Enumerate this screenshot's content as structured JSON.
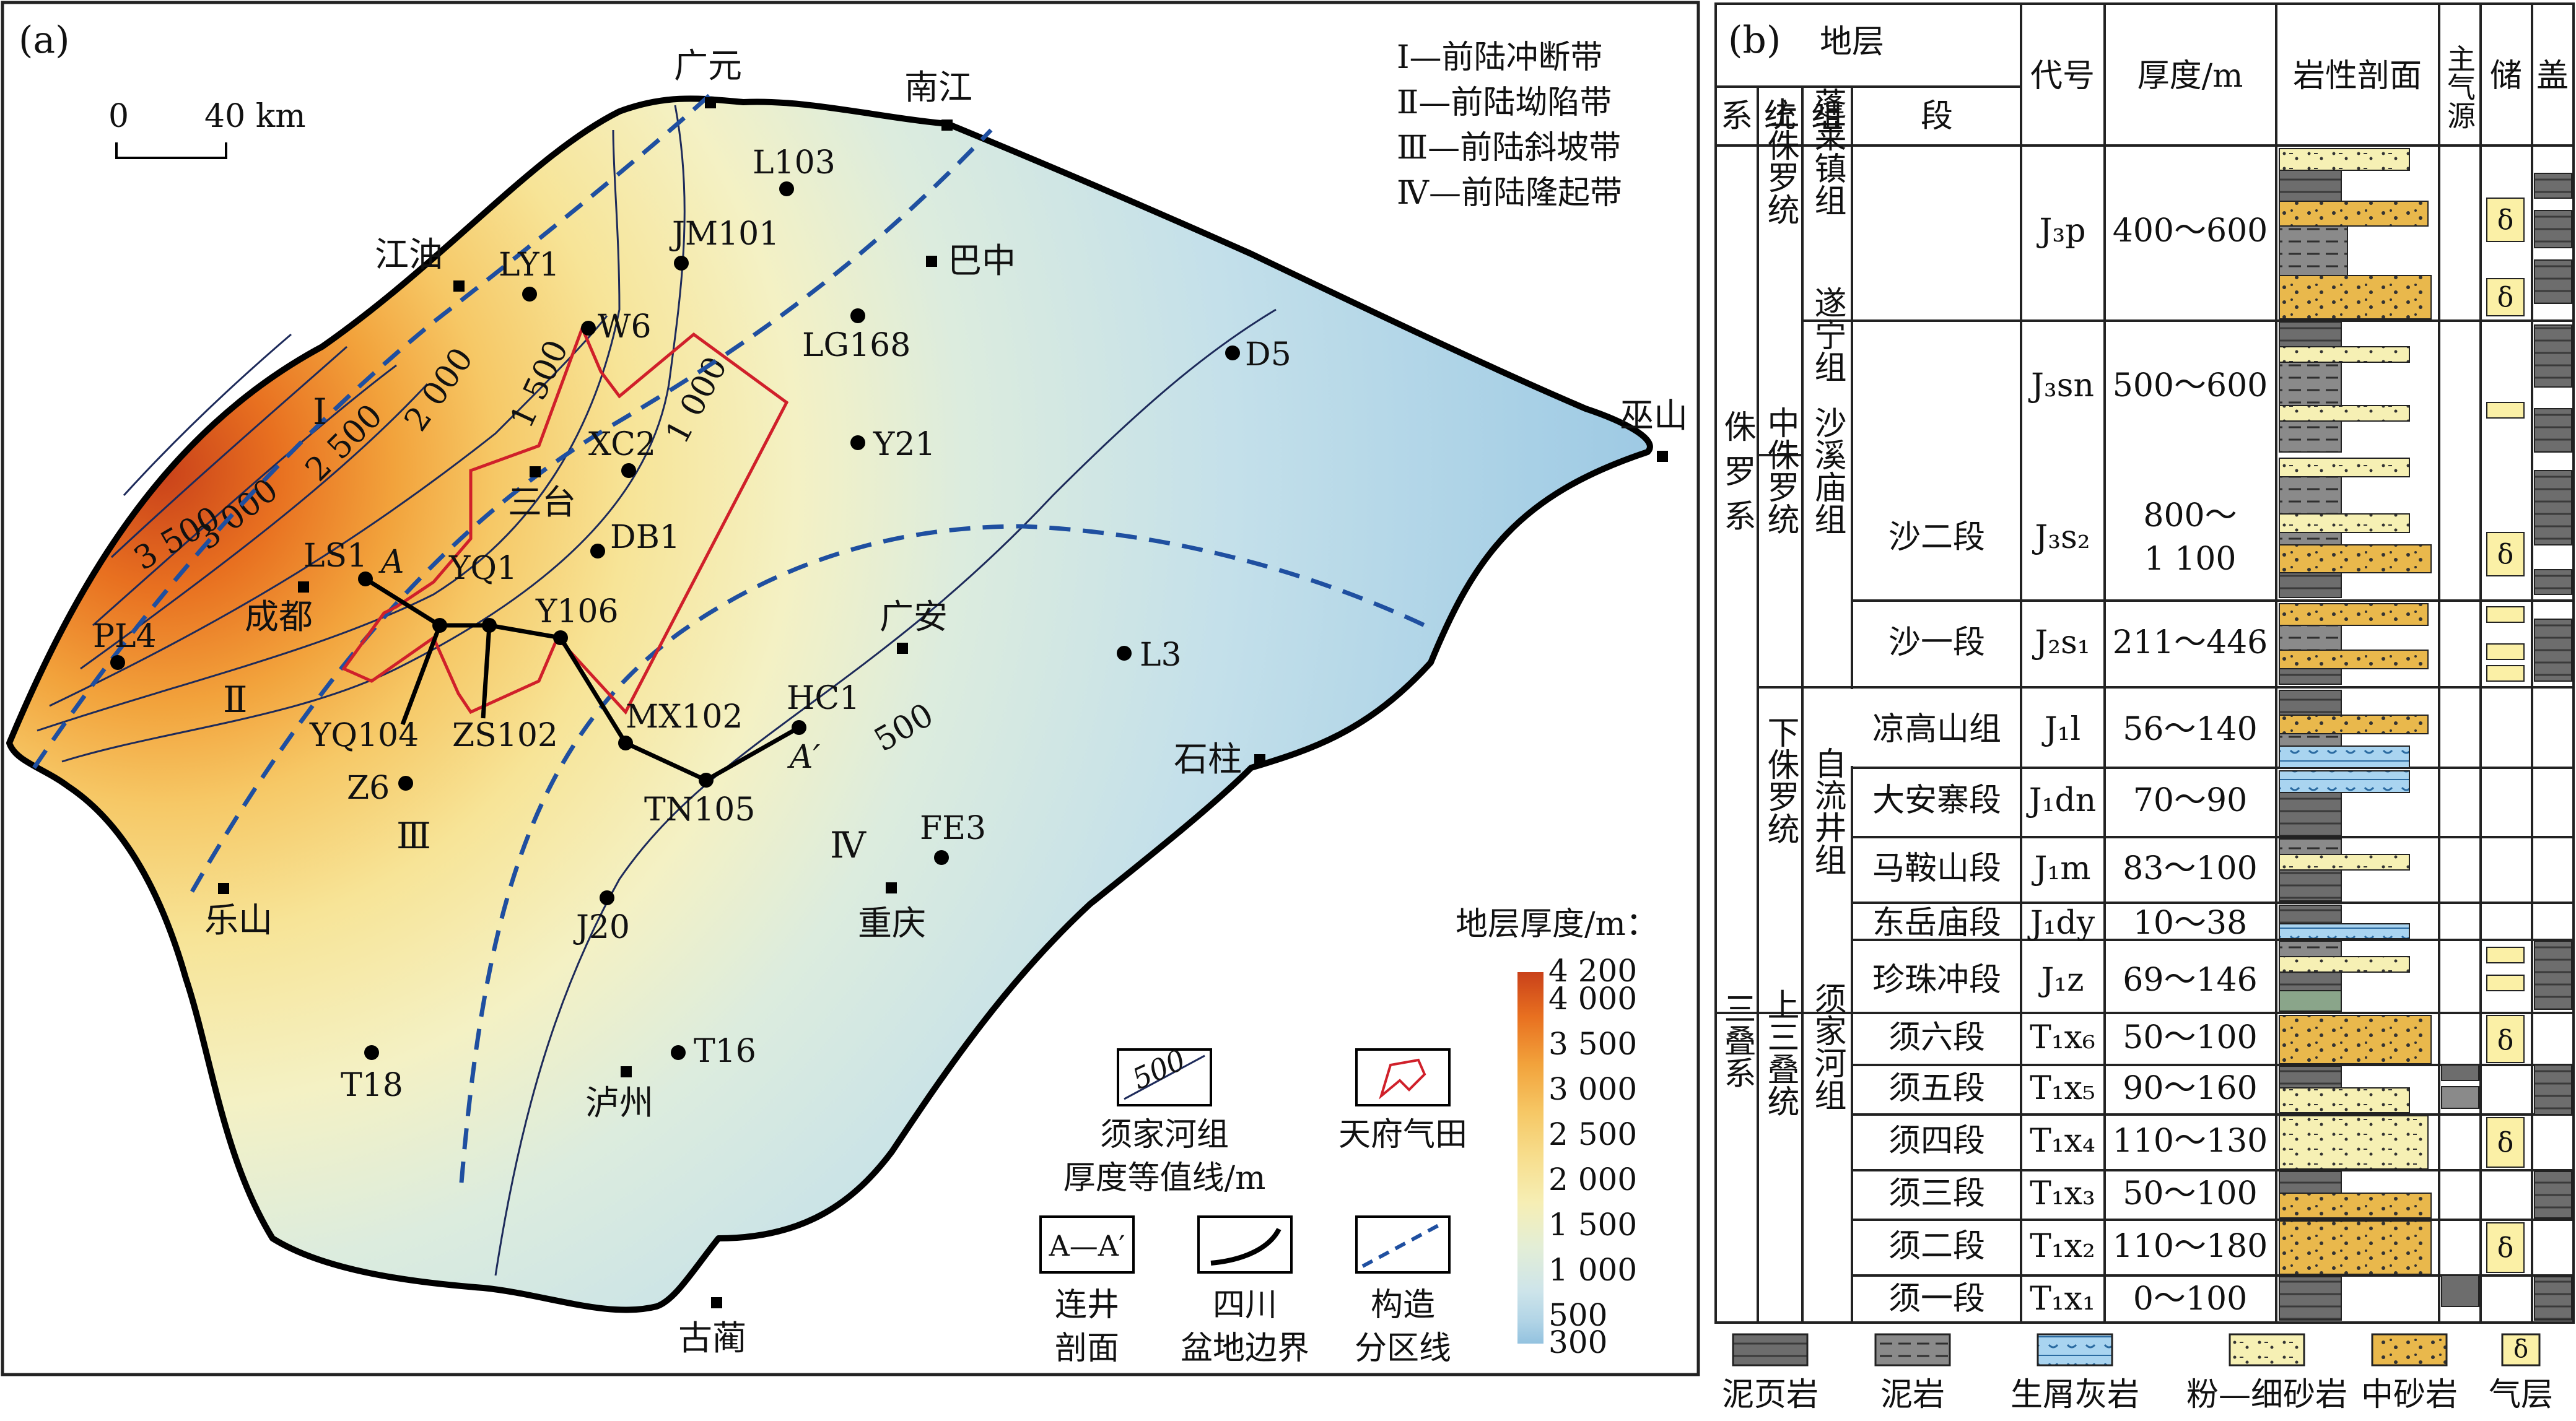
{
  "panel_a": {
    "label": "(a)",
    "scale": {
      "zero": "0",
      "dist": "40 km"
    },
    "zone_legend": [
      "Ⅰ—前陆冲断带",
      "Ⅱ—前陆坳陷带",
      "Ⅲ—前陆斜坡带",
      "Ⅳ—前陆隆起带"
    ],
    "zones": [
      "Ⅰ",
      "Ⅱ",
      "Ⅲ",
      "Ⅳ"
    ],
    "cities": [
      "广元",
      "南江",
      "江油",
      "巴中",
      "巫山",
      "三台",
      "成都",
      "广安",
      "石柱",
      "乐山",
      "重庆",
      "泸州",
      "古蔺"
    ],
    "wells": [
      "L103",
      "JM101",
      "LY1",
      "W6",
      "LG168",
      "D5",
      "XC2",
      "Y21",
      "LS1",
      "YQ1",
      "Y106",
      "DB1",
      "PL4",
      "YQ104",
      "ZS102",
      "MX102",
      "HC1",
      "L3",
      "TN105",
      "Z6",
      "FE3",
      "J20",
      "T18",
      "T16"
    ],
    "section_ends": [
      "A",
      "A′"
    ],
    "contour_labels": [
      "3 500",
      "3 000",
      "2 500",
      "2 000",
      "1 500",
      "1 000",
      "500"
    ],
    "colorbar": {
      "title": "地层厚度/m：",
      "ticks": [
        "4 200",
        "4 000",
        "3 500",
        "3 000",
        "2 500",
        "2 000",
        "1 500",
        "1 000",
        "500",
        "300"
      ],
      "colors": [
        "#c9411a",
        "#e87020",
        "#f2a33c",
        "#f6c866",
        "#f7de8e",
        "#f6eeb4",
        "#e3eed6",
        "#cde4ea",
        "#b1d4e6",
        "#93c2df"
      ]
    },
    "legend": {
      "contour_sample": "500",
      "contour": "须家河组\n厚度等值线/m",
      "gasfield": "天府气田",
      "section_sample": "A—A′",
      "section": "连井\n剖面",
      "basin": "四川\n盆地边界",
      "structure": "构造\n分区线"
    }
  },
  "panel_b": {
    "label": "(b)",
    "headers": {
      "strata": "地层",
      "xi": "系",
      "tong": "统",
      "zu": "组",
      "duan": "段",
      "code": "代号",
      "thickness": "厚度/m",
      "lith": "岩性剖面",
      "source": "主气源",
      "reservoir": "储",
      "seal": "盖"
    },
    "systems": [
      "侏罗系",
      "三叠系"
    ],
    "series": [
      "上侏罗统",
      "中侏罗统",
      "下侏罗统",
      "上三叠统"
    ],
    "formations": [
      "蓬莱镇组",
      "遂宁组",
      "沙溪庙组",
      "凉高山组",
      "自流井组",
      "须家河组"
    ],
    "rows": [
      {
        "member": "",
        "code": "J₃p",
        "thickness": "400～600"
      },
      {
        "member": "",
        "code": "J₃sn",
        "thickness": "500～600"
      },
      {
        "member": "沙二段",
        "code": "J₃s₂",
        "thickness": "800～\n1 100"
      },
      {
        "member": "沙一段",
        "code": "J₂s₁",
        "thickness": "211～446"
      },
      {
        "member": "",
        "code": "J₁l",
        "thickness": "56～140"
      },
      {
        "member": "大安寨段",
        "code": "J₁dn",
        "thickness": "70～90"
      },
      {
        "member": "马鞍山段",
        "code": "J₁m",
        "thickness": "83～100"
      },
      {
        "member": "东岳庙段",
        "code": "J₁dy",
        "thickness": "10～38"
      },
      {
        "member": "珍珠冲段",
        "code": "J₁z",
        "thickness": "69～146"
      },
      {
        "member": "须六段",
        "code": "T₁x₆",
        "thickness": "50～100"
      },
      {
        "member": "须五段",
        "code": "T₁x₅",
        "thickness": "90～160"
      },
      {
        "member": "须四段",
        "code": "T₁x₄",
        "thickness": "110～130"
      },
      {
        "member": "须三段",
        "code": "T₁x₃",
        "thickness": "50～100"
      },
      {
        "member": "须二段",
        "code": "T₁x₂",
        "thickness": "110～180"
      },
      {
        "member": "须一段",
        "code": "T₁x₁",
        "thickness": "0～100"
      }
    ],
    "gas_symbol": "δ",
    "lith_legend": [
      "泥页岩",
      "泥岩",
      "生屑灰岩",
      "粉—细砂岩",
      "中砂岩",
      "气层"
    ]
  }
}
